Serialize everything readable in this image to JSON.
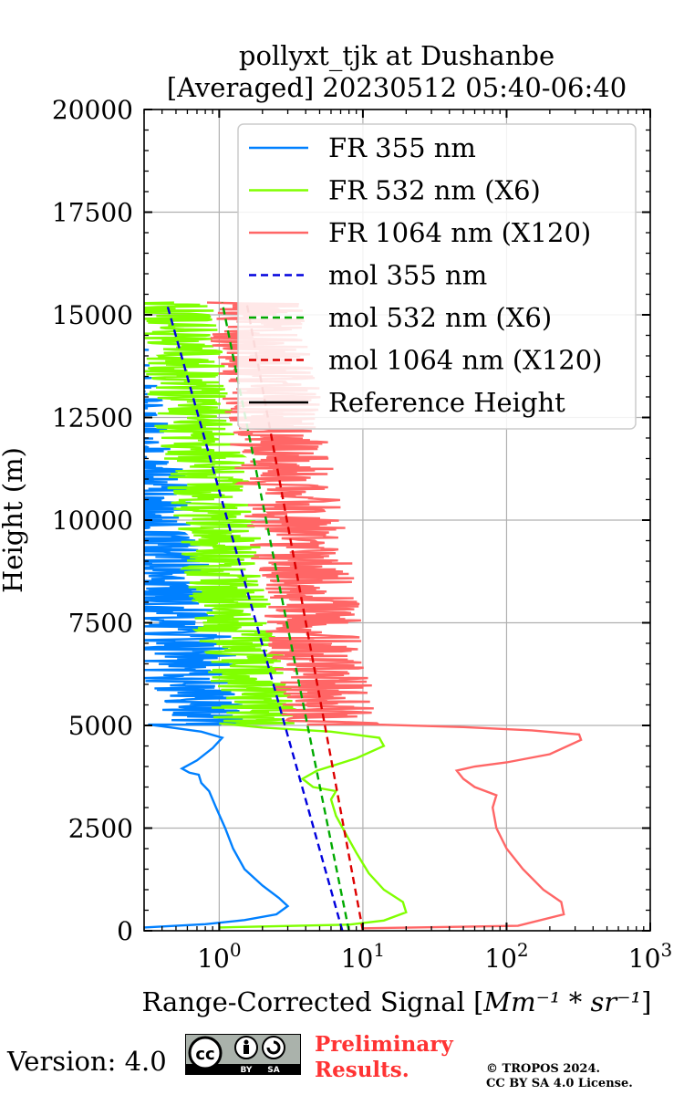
{
  "chart_data": {
    "type": "line",
    "title": [
      "pollyxt_tjk at Dushanbe",
      "[Averaged] 20230512 05:40-06:40"
    ],
    "xlabel": "Range-Corrected Signal [",
    "xlabel_unit": "Mm⁻¹ * sr⁻¹",
    "xlabel_close": "]",
    "ylabel": "Height (m)",
    "xscale": "log",
    "xlim": [
      0.3,
      1000
    ],
    "ylim": [
      0,
      20000
    ],
    "x_ticks": [
      {
        "value": 1,
        "base": "10",
        "exp": "0"
      },
      {
        "value": 10,
        "base": "10",
        "exp": "1"
      },
      {
        "value": 100,
        "base": "10",
        "exp": "2"
      },
      {
        "value": 1000,
        "base": "10",
        "exp": "3"
      }
    ],
    "y_ticks": [
      {
        "value": 0,
        "label": "0"
      },
      {
        "value": 2500,
        "label": "2500"
      },
      {
        "value": 5000,
        "label": "5000"
      },
      {
        "value": 7500,
        "label": "7500"
      },
      {
        "value": 10000,
        "label": "10000"
      },
      {
        "value": 12500,
        "label": "12500"
      },
      {
        "value": 15000,
        "label": "15000"
      },
      {
        "value": 17500,
        "label": "17500"
      },
      {
        "value": 20000,
        "label": "20000"
      }
    ],
    "grid": true,
    "legend_position": "top-right",
    "series": [
      {
        "name": "FR 355 nm",
        "color": "#0080ff",
        "style": "solid",
        "noisy": true,
        "noise_from": 5000,
        "noise_to": 15300,
        "points": [
          [
            0.3,
            80
          ],
          [
            0.8,
            160
          ],
          [
            1.5,
            260
          ],
          [
            2.5,
            400
          ],
          [
            3.0,
            600
          ],
          [
            2.6,
            800
          ],
          [
            2.0,
            1100
          ],
          [
            1.5,
            1500
          ],
          [
            1.25,
            2000
          ],
          [
            1.1,
            2500
          ],
          [
            0.95,
            3000
          ],
          [
            0.85,
            3400
          ],
          [
            0.75,
            3600
          ],
          [
            0.72,
            3800
          ],
          [
            0.62,
            3850
          ],
          [
            0.55,
            3950
          ],
          [
            0.7,
            4150
          ],
          [
            0.9,
            4450
          ],
          [
            1.05,
            4700
          ],
          [
            0.75,
            4850
          ],
          [
            0.4,
            4980
          ],
          [
            0.32,
            5020
          ]
        ]
      },
      {
        "name": "FR 532 nm (X6)",
        "color": "#80ff00",
        "style": "solid",
        "noisy": true,
        "noise_from": 5000,
        "noise_to": 15300,
        "points": [
          [
            1.0,
            80
          ],
          [
            8,
            150
          ],
          [
            14,
            250
          ],
          [
            20,
            450
          ],
          [
            19,
            700
          ],
          [
            14,
            1000
          ],
          [
            11,
            1400
          ],
          [
            9,
            1900
          ],
          [
            7.5,
            2400
          ],
          [
            6.5,
            2800
          ],
          [
            6,
            3200
          ],
          [
            6.5,
            3400
          ],
          [
            4.5,
            3500
          ],
          [
            3.8,
            3700
          ],
          [
            4.8,
            3900
          ],
          [
            9,
            4200
          ],
          [
            14,
            4500
          ],
          [
            13,
            4700
          ],
          [
            6,
            4850
          ],
          [
            2,
            4950
          ],
          [
            1,
            5050
          ]
        ]
      },
      {
        "name": "FR 1064 nm (X120)",
        "color": "#ff6666",
        "style": "solid",
        "noisy": true,
        "noise_from": 5000,
        "noise_to": 15300,
        "points": [
          [
            10,
            60
          ],
          [
            120,
            120
          ],
          [
            250,
            400
          ],
          [
            240,
            700
          ],
          [
            180,
            1000
          ],
          [
            130,
            1500
          ],
          [
            100,
            2000
          ],
          [
            85,
            2500
          ],
          [
            80,
            3000
          ],
          [
            85,
            3300
          ],
          [
            60,
            3500
          ],
          [
            50,
            3700
          ],
          [
            45,
            3900
          ],
          [
            60,
            4000
          ],
          [
            100,
            4100
          ],
          [
            200,
            4300
          ],
          [
            330,
            4650
          ],
          [
            320,
            4780
          ],
          [
            150,
            4880
          ],
          [
            50,
            4960
          ],
          [
            10,
            5030
          ]
        ]
      },
      {
        "name": "mol 355 nm",
        "color": "#0000dd",
        "style": "dashed",
        "noisy": false,
        "points": [
          [
            7.2,
            0
          ],
          [
            0.43,
            15300
          ]
        ]
      },
      {
        "name": "mol 532 nm (X6)",
        "color": "#00aa00",
        "style": "dashed",
        "noisy": false,
        "points": [
          [
            8.0,
            0
          ],
          [
            1.05,
            15300
          ]
        ]
      },
      {
        "name": "mol 1064 nm (X120)",
        "color": "#dd0000",
        "style": "dashed",
        "noisy": false,
        "points": [
          [
            10.0,
            0
          ],
          [
            1.55,
            15300
          ]
        ]
      },
      {
        "name": "Reference Height",
        "color": "#000000",
        "style": "solid",
        "noisy": false,
        "points": []
      }
    ]
  },
  "footer": {
    "version": "Version: 4.0",
    "license_badge": {
      "by": "BY",
      "sa": "SA",
      "cc": "cc"
    },
    "preliminary": [
      "Preliminary",
      "Results."
    ],
    "copyright": [
      "© TROPOS 2024.",
      "CC BY SA 4.0 License."
    ]
  }
}
